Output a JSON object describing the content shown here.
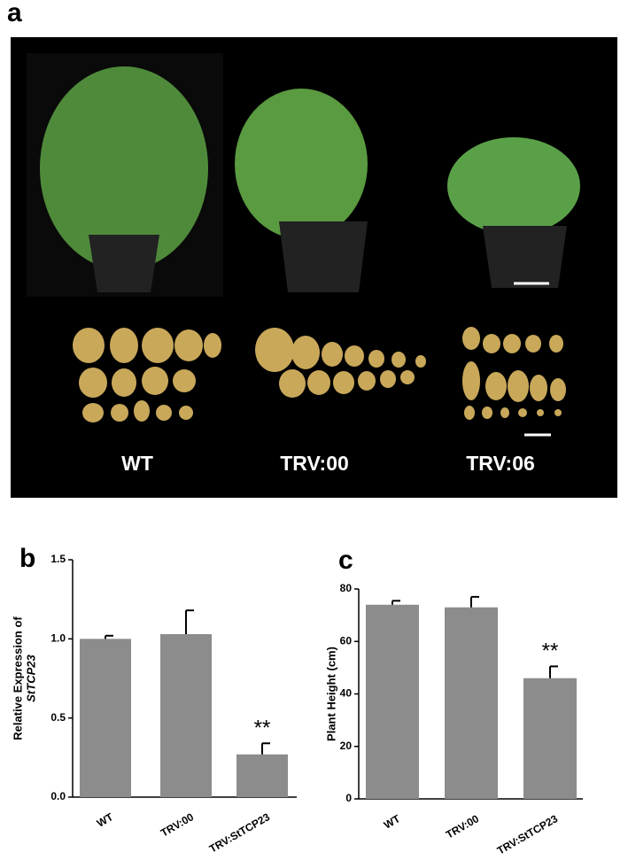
{
  "panel_a": {
    "label": "a",
    "labels": [
      "WT",
      "TRV:00",
      "TRV:06"
    ]
  },
  "chart_data": [
    {
      "type": "bar",
      "panel_label": "b",
      "ylabel": [
        "Relative Expression of",
        "StTCP23"
      ],
      "categories": [
        "WT",
        "TRV:00",
        "TRV:StTCP23"
      ],
      "values": [
        1.0,
        1.03,
        0.27
      ],
      "errors": [
        0.02,
        0.15,
        0.07
      ],
      "color": "#8c8c8c",
      "annotation": "**",
      "ylim": [
        0,
        1.5
      ],
      "yticks": [
        {
          "value": 0,
          "label": "0.0"
        },
        {
          "value": 0.5,
          "label": "0.5"
        },
        {
          "value": 1,
          "label": "1.0"
        },
        {
          "value": 1.5,
          "label": "1.5"
        }
      ]
    },
    {
      "type": "bar",
      "panel_label": "c",
      "ylabel": [
        "Plant Height (cm)"
      ],
      "categories": [
        "WT",
        "TRV:00",
        "TRV:StTCP23"
      ],
      "values": [
        74,
        73,
        46
      ],
      "errors": [
        1.5,
        4,
        4.5
      ],
      "color": "#8c8c8c",
      "annotation": "**",
      "ylim": [
        0,
        80
      ],
      "yticks": [
        0,
        20,
        40,
        60,
        80
      ]
    }
  ]
}
